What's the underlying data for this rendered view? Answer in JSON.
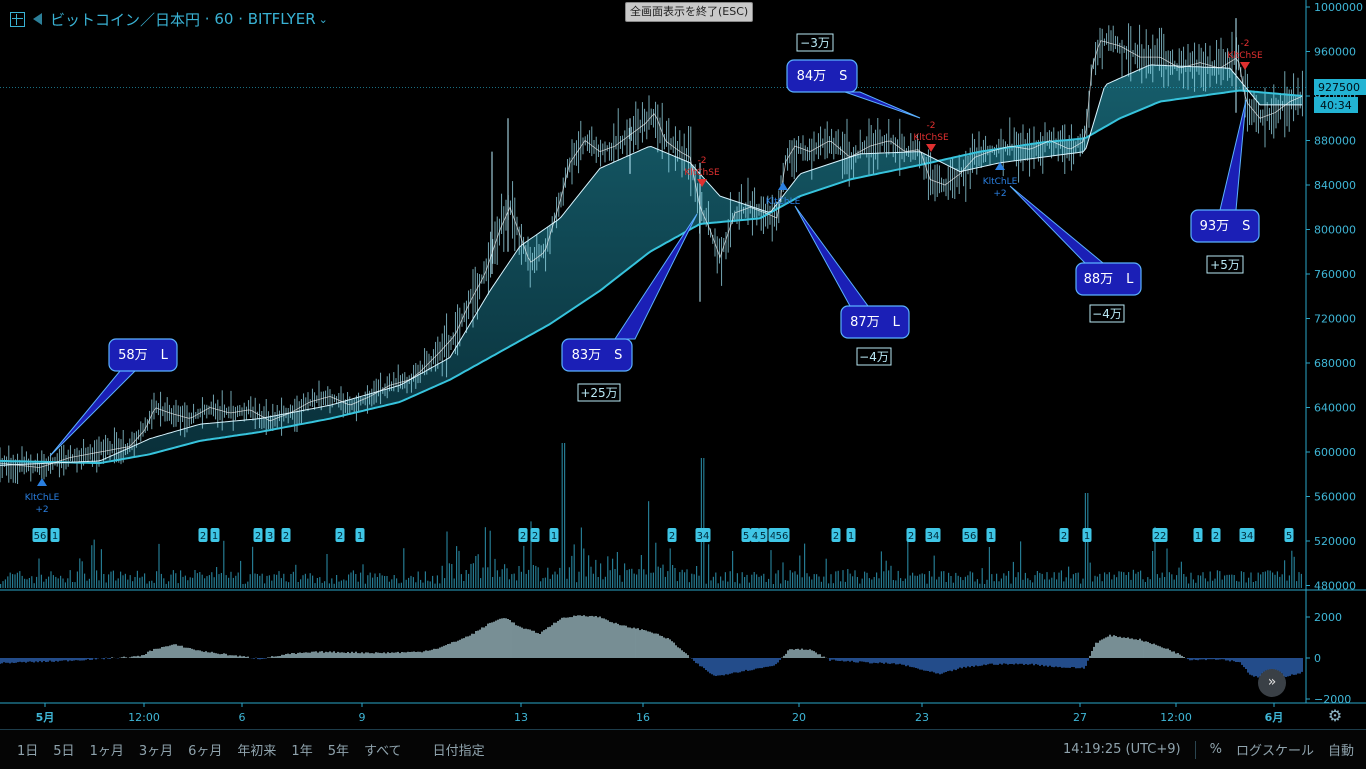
{
  "header": {
    "symbol": "ビットコイン／日本円",
    "interval": "60",
    "exchange": "BITFLYER"
  },
  "exit_fullscreen_label": "全画面表示を終了(ESC)",
  "price_axis": {
    "ticks": [
      "1000000",
      "960000",
      "920000",
      "880000",
      "840000",
      "800000",
      "760000",
      "720000",
      "680000",
      "640000",
      "600000",
      "560000",
      "520000",
      "480000"
    ],
    "current_price": "927500",
    "countdown": "40:34"
  },
  "osc_axis": {
    "ticks": [
      "2000",
      "0",
      "−2000"
    ]
  },
  "time_axis": {
    "ticks": [
      "5月",
      "12:00",
      "6",
      "9",
      "13",
      "16",
      "20",
      "23",
      "27",
      "12:00",
      "6月"
    ]
  },
  "bottom_bar": {
    "ranges": [
      "1日",
      "5日",
      "1ヶ月",
      "3ヶ月",
      "6ヶ月",
      "年初来",
      "1年",
      "5年",
      "すべて"
    ],
    "custom_range": "日付指定",
    "clock": "14:19:25 (UTC+9)",
    "percent": "%",
    "log_scale": "ログスケール",
    "auto": "自動"
  },
  "colors": {
    "accent": "#3fb6d6",
    "cloud": "#1d8796",
    "callout": "#1b1fb6",
    "sell": "#e03030",
    "buy": "#2a7fe0"
  },
  "chart_data": {
    "type": "line",
    "price_range": [
      480000,
      1000000
    ],
    "oscillator_range": [
      -2000,
      2000
    ],
    "close": [
      [
        0,
        590000
      ],
      [
        40,
        586000
      ],
      [
        70,
        595000
      ],
      [
        100,
        600000
      ],
      [
        130,
        605000
      ],
      [
        145,
        620000
      ],
      [
        155,
        640000
      ],
      [
        170,
        635000
      ],
      [
        190,
        630000
      ],
      [
        210,
        640000
      ],
      [
        230,
        635000
      ],
      [
        250,
        638000
      ],
      [
        270,
        628000
      ],
      [
        290,
        635000
      ],
      [
        310,
        645000
      ],
      [
        330,
        650000
      ],
      [
        350,
        642000
      ],
      [
        370,
        650000
      ],
      [
        390,
        660000
      ],
      [
        410,
        665000
      ],
      [
        420,
        672000
      ],
      [
        440,
        690000
      ],
      [
        455,
        705000
      ],
      [
        470,
        735000
      ],
      [
        485,
        760000
      ],
      [
        500,
        800000
      ],
      [
        510,
        820000
      ],
      [
        520,
        795000
      ],
      [
        530,
        770000
      ],
      [
        545,
        780000
      ],
      [
        560,
        825000
      ],
      [
        570,
        860000
      ],
      [
        585,
        880000
      ],
      [
        600,
        870000
      ],
      [
        615,
        875000
      ],
      [
        630,
        885000
      ],
      [
        645,
        895000
      ],
      [
        655,
        905000
      ],
      [
        665,
        880000
      ],
      [
        680,
        870000
      ],
      [
        690,
        865000
      ],
      [
        700,
        820000
      ],
      [
        710,
        800000
      ],
      [
        720,
        775000
      ],
      [
        735,
        815000
      ],
      [
        750,
        820000
      ],
      [
        765,
        815000
      ],
      [
        778,
        810000
      ],
      [
        785,
        860000
      ],
      [
        795,
        875000
      ],
      [
        810,
        870000
      ],
      [
        830,
        880000
      ],
      [
        850,
        865000
      ],
      [
        870,
        875000
      ],
      [
        890,
        880000
      ],
      [
        905,
        870000
      ],
      [
        920,
        872000
      ],
      [
        930,
        845000
      ],
      [
        945,
        840000
      ],
      [
        960,
        850000
      ],
      [
        975,
        865000
      ],
      [
        990,
        870000
      ],
      [
        1010,
        875000
      ],
      [
        1030,
        872000
      ],
      [
        1050,
        880000
      ],
      [
        1070,
        872000
      ],
      [
        1085,
        880000
      ],
      [
        1092,
        945000
      ],
      [
        1100,
        970000
      ],
      [
        1120,
        965000
      ],
      [
        1140,
        955000
      ],
      [
        1160,
        955000
      ],
      [
        1180,
        945000
      ],
      [
        1200,
        950000
      ],
      [
        1220,
        945000
      ],
      [
        1238,
        955000
      ],
      [
        1246,
        915000
      ],
      [
        1260,
        900000
      ],
      [
        1275,
        905000
      ],
      [
        1290,
        915000
      ],
      [
        1303,
        920000
      ]
    ],
    "slow_ma": [
      [
        0,
        592000
      ],
      [
        100,
        590000
      ],
      [
        150,
        598000
      ],
      [
        200,
        610000
      ],
      [
        260,
        618000
      ],
      [
        330,
        630000
      ],
      [
        400,
        645000
      ],
      [
        450,
        665000
      ],
      [
        500,
        690000
      ],
      [
        550,
        715000
      ],
      [
        600,
        745000
      ],
      [
        650,
        780000
      ],
      [
        700,
        805000
      ],
      [
        760,
        810000
      ],
      [
        800,
        830000
      ],
      [
        850,
        845000
      ],
      [
        920,
        858000
      ],
      [
        980,
        870000
      ],
      [
        1040,
        878000
      ],
      [
        1085,
        882000
      ],
      [
        1120,
        900000
      ],
      [
        1160,
        915000
      ],
      [
        1200,
        920000
      ],
      [
        1240,
        925000
      ],
      [
        1303,
        920000
      ]
    ],
    "fast_ma": [
      [
        0,
        588000
      ],
      [
        100,
        592000
      ],
      [
        150,
        612000
      ],
      [
        200,
        625000
      ],
      [
        260,
        630000
      ],
      [
        330,
        642000
      ],
      [
        400,
        660000
      ],
      [
        450,
        685000
      ],
      [
        490,
        745000
      ],
      [
        520,
        785000
      ],
      [
        560,
        810000
      ],
      [
        600,
        855000
      ],
      [
        650,
        875000
      ],
      [
        690,
        860000
      ],
      [
        720,
        830000
      ],
      [
        770,
        815000
      ],
      [
        800,
        850000
      ],
      [
        860,
        868000
      ],
      [
        920,
        870000
      ],
      [
        960,
        852000
      ],
      [
        1000,
        860000
      ],
      [
        1085,
        870000
      ],
      [
        1105,
        930000
      ],
      [
        1150,
        948000
      ],
      [
        1230,
        945000
      ],
      [
        1260,
        912000
      ],
      [
        1303,
        912000
      ]
    ],
    "callouts": [
      {
        "label": "58万　L",
        "result": ""
      },
      {
        "label": "83万　S",
        "result": "+25万"
      },
      {
        "label": "84万　S",
        "result": "−3万"
      },
      {
        "label": "87万　L",
        "result": "−4万"
      },
      {
        "label": "88万　L",
        "result": "−4万"
      },
      {
        "label": "93万　S",
        "result": "+5万"
      }
    ],
    "signals": [
      {
        "type": "buy",
        "label": "KltChLE",
        "qty": "+2"
      },
      {
        "type": "sell",
        "label": "KltChSE",
        "qty": "-2"
      },
      {
        "type": "buy",
        "label": "KltChLE",
        "qty": ""
      },
      {
        "type": "sell",
        "label": "KltChSE",
        "qty": "-2"
      },
      {
        "type": "buy",
        "label": "KltChLE",
        "qty": "+2"
      },
      {
        "type": "sell",
        "label": "KltChSE",
        "qty": "-2"
      }
    ],
    "markers": [
      "56",
      "1",
      "2",
      "1",
      "2",
      "3",
      "2",
      "2",
      "1",
      "2",
      "2",
      "1",
      "2",
      "34",
      "5",
      "4",
      "5",
      "4",
      "56",
      "2",
      "1",
      "2",
      "34",
      "56",
      "1",
      "2",
      "1",
      "22",
      "1",
      "2",
      "34",
      "5"
    ],
    "oscillator": [
      [
        0,
        -250
      ],
      [
        60,
        -150
      ],
      [
        100,
        -40
      ],
      [
        140,
        80
      ],
      [
        155,
        450
      ],
      [
        175,
        650
      ],
      [
        200,
        350
      ],
      [
        230,
        150
      ],
      [
        260,
        -40
      ],
      [
        290,
        200
      ],
      [
        320,
        300
      ],
      [
        380,
        250
      ],
      [
        420,
        300
      ],
      [
        440,
        500
      ],
      [
        470,
        1100
      ],
      [
        490,
        1700
      ],
      [
        505,
        2000
      ],
      [
        520,
        1500
      ],
      [
        540,
        1200
      ],
      [
        560,
        1900
      ],
      [
        580,
        2100
      ],
      [
        600,
        2000
      ],
      [
        620,
        1600
      ],
      [
        650,
        1300
      ],
      [
        670,
        900
      ],
      [
        695,
        -200
      ],
      [
        715,
        -900
      ],
      [
        735,
        -700
      ],
      [
        760,
        -500
      ],
      [
        775,
        -350
      ],
      [
        790,
        450
      ],
      [
        810,
        400
      ],
      [
        830,
        -100
      ],
      [
        860,
        -200
      ],
      [
        900,
        -300
      ],
      [
        940,
        -800
      ],
      [
        960,
        -500
      ],
      [
        990,
        -300
      ],
      [
        1030,
        -300
      ],
      [
        1060,
        -450
      ],
      [
        1085,
        -500
      ],
      [
        1095,
        700
      ],
      [
        1110,
        1100
      ],
      [
        1140,
        900
      ],
      [
        1170,
        400
      ],
      [
        1190,
        -80
      ],
      [
        1220,
        -50
      ],
      [
        1240,
        -200
      ],
      [
        1250,
        -800
      ],
      [
        1265,
        -1100
      ],
      [
        1285,
        -900
      ],
      [
        1303,
        -700
      ]
    ]
  }
}
